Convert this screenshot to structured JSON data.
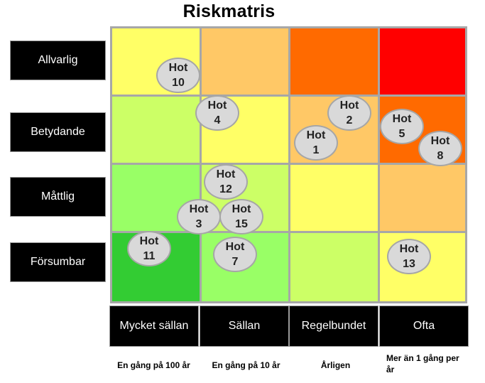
{
  "title": "Riskmatris",
  "consequence_labels": [
    "Allvarlig",
    "Betydande",
    "Måttlig",
    "Försumbar"
  ],
  "frequency_labels": [
    "Mycket sällan",
    "Sällan",
    "Regelbundet",
    "Ofta"
  ],
  "frequency_descriptions": [
    "En gång på 100 år",
    "En gång på 10 år",
    "Årligen",
    "Mer än 1 gång per år"
  ],
  "matrix_colors": [
    [
      "#ffff66",
      "#ffc866",
      "#ff6a00",
      "#ff0000"
    ],
    [
      "#ccff66",
      "#ffff66",
      "#ffc866",
      "#ff6a00"
    ],
    [
      "#99ff66",
      "#ccff66",
      "#ffff66",
      "#ffc866"
    ],
    [
      "#33cc33",
      "#99ff66",
      "#ccff66",
      "#ffff66"
    ]
  ],
  "threats": [
    {
      "label": "Hot",
      "number": "10",
      "frequency": "Mycket sällan",
      "consequence": "Allvarlig"
    },
    {
      "label": "Hot",
      "number": "4",
      "frequency": "Sällan",
      "consequence": "Betydande"
    },
    {
      "label": "Hot",
      "number": "2",
      "frequency": "Regelbundet",
      "consequence": "Betydande"
    },
    {
      "label": "Hot",
      "number": "1",
      "frequency": "Regelbundet",
      "consequence": "Betydande"
    },
    {
      "label": "Hot",
      "number": "5",
      "frequency": "Ofta",
      "consequence": "Betydande"
    },
    {
      "label": "Hot",
      "number": "8",
      "frequency": "Ofta",
      "consequence": "Betydande"
    },
    {
      "label": "Hot",
      "number": "12",
      "frequency": "Sällan",
      "consequence": "Måttlig"
    },
    {
      "label": "Hot",
      "number": "3",
      "frequency": "Sällan",
      "consequence": "Måttlig"
    },
    {
      "label": "Hot",
      "number": "15",
      "frequency": "Sällan",
      "consequence": "Måttlig"
    },
    {
      "label": "Hot",
      "number": "11",
      "frequency": "Mycket sällan",
      "consequence": "Försumbar"
    },
    {
      "label": "Hot",
      "number": "7",
      "frequency": "Sällan",
      "consequence": "Försumbar"
    },
    {
      "label": "Hot",
      "number": "13",
      "frequency": "Ofta",
      "consequence": "Försumbar"
    }
  ]
}
